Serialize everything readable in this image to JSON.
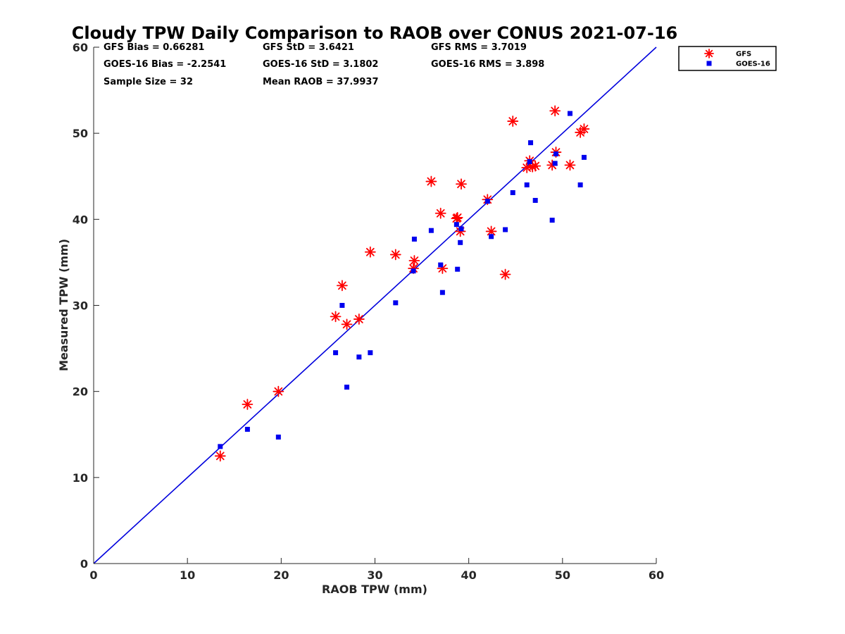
{
  "chart_data": {
    "type": "scatter",
    "title": "Cloudy TPW Daily Comparison to RAOB over CONUS 2021-07-16",
    "xlabel": "RAOB TPW (mm)",
    "ylabel": "Measured TPW (mm)",
    "xlim": [
      0,
      60
    ],
    "ylim": [
      0,
      60
    ],
    "xticks": [
      0,
      10,
      20,
      30,
      40,
      50,
      60
    ],
    "yticks": [
      0,
      10,
      20,
      30,
      40,
      50,
      60
    ],
    "grid": false,
    "legend_position": "top-right-outside",
    "reference_line": {
      "x": [
        0,
        60
      ],
      "y": [
        0,
        60
      ],
      "color": "#0000dd"
    },
    "stats": [
      {
        "text": "GFS Bias = 0.66281"
      },
      {
        "text": "GFS StD = 3.6421"
      },
      {
        "text": "GFS RMS = 3.7019"
      },
      {
        "text": "GOES-16 Bias = -2.2541"
      },
      {
        "text": "GOES-16 StD = 3.1802"
      },
      {
        "text": "GOES-16 RMS = 3.898"
      },
      {
        "text": "Sample Size = 32"
      },
      {
        "text": "Mean RAOB = 37.9937"
      }
    ],
    "series": [
      {
        "name": "GFS",
        "marker": "asterisk",
        "color": "#ff0000",
        "points": [
          [
            13.5,
            12.5
          ],
          [
            16.4,
            18.5
          ],
          [
            19.7,
            20.0
          ],
          [
            25.8,
            28.7
          ],
          [
            26.5,
            32.3
          ],
          [
            27.0,
            27.8
          ],
          [
            28.3,
            28.4
          ],
          [
            29.5,
            36.2
          ],
          [
            32.2,
            35.9
          ],
          [
            34.2,
            35.2
          ],
          [
            34.1,
            34.3
          ],
          [
            36.0,
            44.4
          ],
          [
            37.0,
            40.7
          ],
          [
            37.2,
            34.3
          ],
          [
            38.7,
            40.1
          ],
          [
            38.8,
            40.2
          ],
          [
            39.1,
            38.6
          ],
          [
            39.2,
            44.1
          ],
          [
            42.0,
            42.3
          ],
          [
            42.4,
            38.6
          ],
          [
            43.9,
            33.6
          ],
          [
            44.7,
            51.4
          ],
          [
            46.2,
            46.0
          ],
          [
            46.5,
            46.8
          ],
          [
            46.8,
            46.1
          ],
          [
            47.1,
            46.2
          ],
          [
            48.9,
            46.3
          ],
          [
            49.2,
            52.6
          ],
          [
            49.3,
            47.8
          ],
          [
            50.8,
            46.3
          ],
          [
            51.9,
            50.1
          ],
          [
            52.3,
            50.5
          ]
        ]
      },
      {
        "name": "GOES-16",
        "marker": "square",
        "color": "#0000ee",
        "points": [
          [
            13.5,
            13.6
          ],
          [
            16.4,
            15.6
          ],
          [
            19.7,
            14.7
          ],
          [
            25.8,
            24.5
          ],
          [
            26.5,
            30.0
          ],
          [
            27.0,
            20.5
          ],
          [
            28.3,
            24.0
          ],
          [
            29.5,
            24.5
          ],
          [
            32.2,
            30.3
          ],
          [
            34.2,
            37.7
          ],
          [
            34.1,
            34.0
          ],
          [
            36.0,
            38.7
          ],
          [
            37.0,
            34.7
          ],
          [
            37.2,
            31.5
          ],
          [
            38.7,
            39.4
          ],
          [
            38.8,
            34.2
          ],
          [
            39.1,
            37.3
          ],
          [
            39.2,
            38.9
          ],
          [
            42.0,
            42.1
          ],
          [
            42.4,
            38.0
          ],
          [
            43.9,
            38.8
          ],
          [
            44.7,
            43.1
          ],
          [
            46.2,
            44.0
          ],
          [
            46.5,
            46.7
          ],
          [
            46.6,
            48.9
          ],
          [
            47.1,
            42.2
          ],
          [
            48.9,
            39.9
          ],
          [
            49.2,
            46.5
          ],
          [
            49.3,
            47.6
          ],
          [
            50.8,
            52.3
          ],
          [
            51.9,
            44.0
          ],
          [
            52.3,
            47.2
          ]
        ]
      }
    ]
  }
}
